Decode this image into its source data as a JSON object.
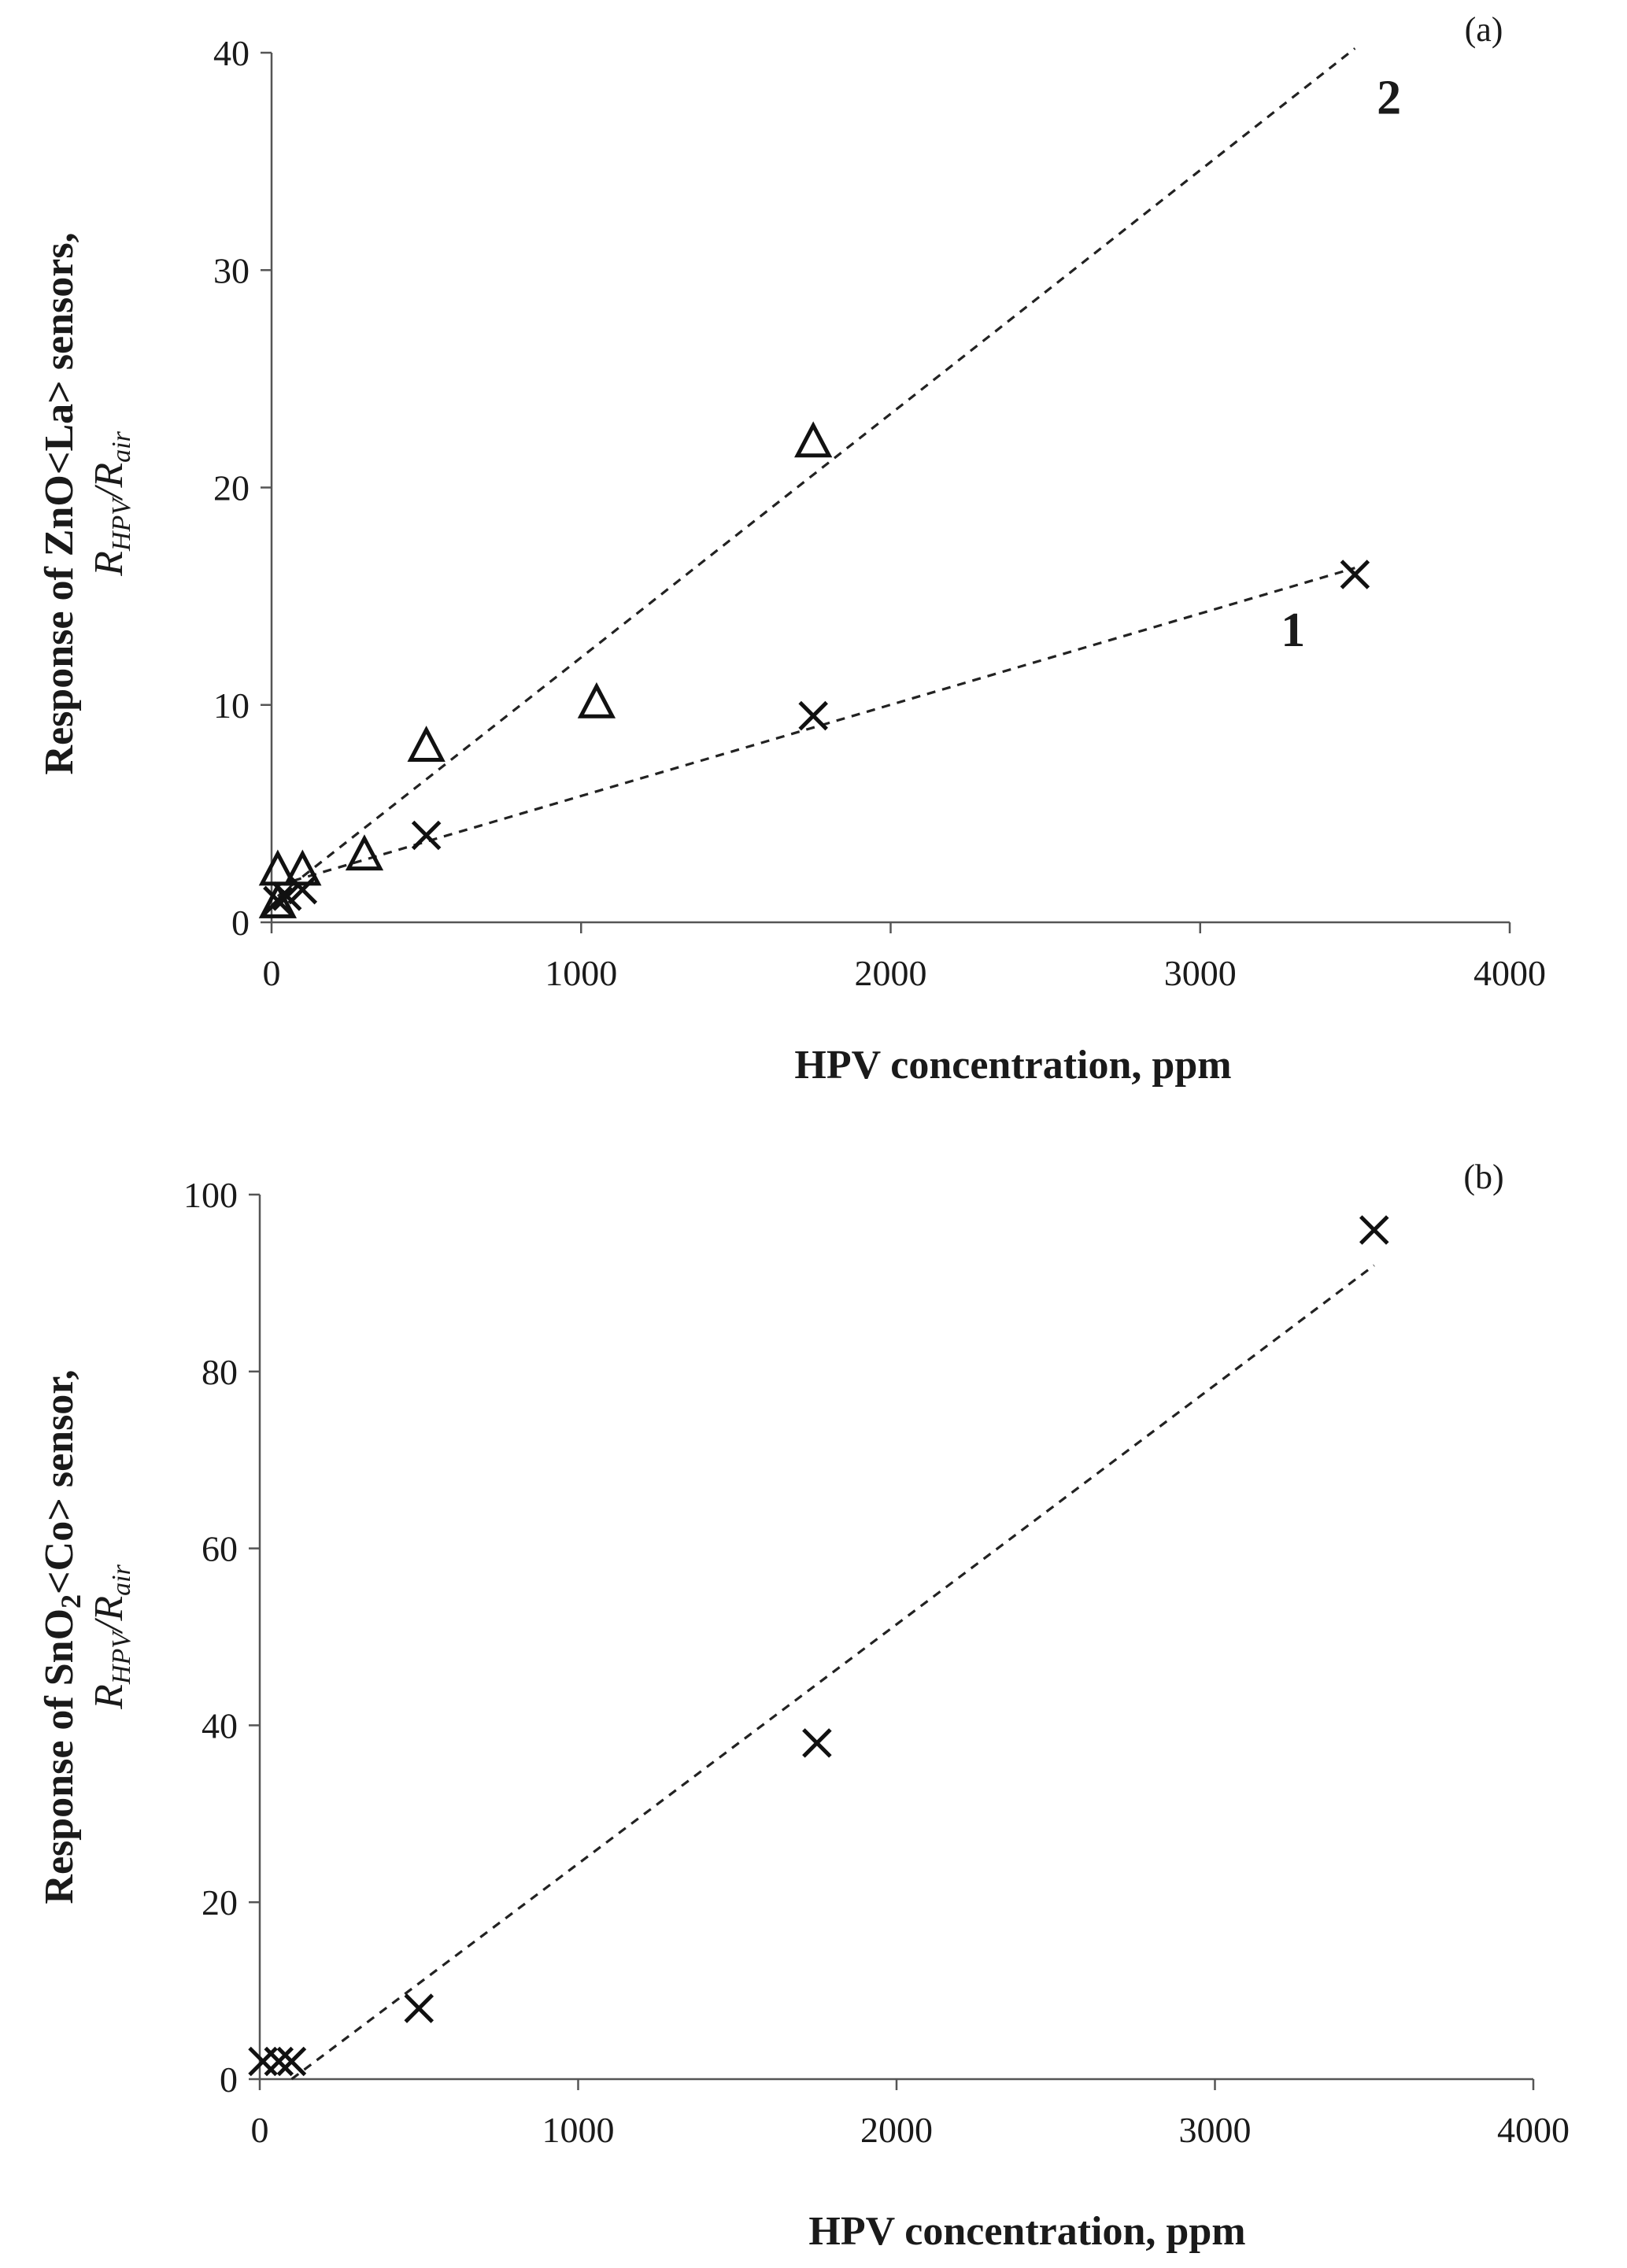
{
  "chart_data": [
    {
      "type": "scatter",
      "panel_label": "(a)",
      "xlabel": "HPV concentration,  ppm",
      "ylabel_main": "Response of ZnO<La> sensors,",
      "ylabel_r": "R",
      "ylabel_sub1": "HPV",
      "ylabel_slash": "/R",
      "ylabel_sub2": "air",
      "xlim": [
        0,
        4000
      ],
      "ylim": [
        0,
        40
      ],
      "xticks": [
        "0",
        "1000",
        "2000",
        "3000",
        "4000"
      ],
      "yticks": [
        "0",
        "10",
        "20",
        "30",
        "40"
      ],
      "series": [
        {
          "name": "1",
          "marker": "x",
          "points": [
            [
              20,
              1.0
            ],
            [
              50,
              1.2
            ],
            [
              100,
              1.5
            ],
            [
              500,
              4.0
            ],
            [
              1750,
              9.5
            ],
            [
              3500,
              16.0
            ]
          ],
          "trend": [
            [
              20,
              1.7
            ],
            [
              3500,
              16.3
            ]
          ],
          "label_at": [
            3300,
            12.7
          ]
        },
        {
          "name": "2",
          "marker": "triangle",
          "points": [
            [
              20,
              0.8
            ],
            [
              20,
              2.3
            ],
            [
              100,
              2.3
            ],
            [
              300,
              3.0
            ],
            [
              500,
              8.0
            ],
            [
              1050,
              10.0
            ],
            [
              1750,
              22.0
            ]
          ],
          "trend": [
            [
              20,
              1.2
            ],
            [
              3500,
              40.2
            ]
          ],
          "label_at": [
            3610,
            37.2
          ]
        }
      ]
    },
    {
      "type": "scatter",
      "panel_label": "(b)",
      "xlabel": "HPV concentration,  ppm",
      "ylabel_main": "Response of SnO",
      "ylabel_main_sub": "2",
      "ylabel_main_rest": "<Co> sensor,",
      "ylabel_r": "R",
      "ylabel_sub1": "HPV",
      "ylabel_slash": "/R",
      "ylabel_sub2": "air",
      "xlim": [
        0,
        4000
      ],
      "ylim": [
        0,
        100
      ],
      "xticks": [
        "0",
        "1000",
        "2000",
        "3000",
        "4000"
      ],
      "yticks": [
        "0",
        "20",
        "40",
        "60",
        "80",
        "100"
      ],
      "series": [
        {
          "name": "SnO2<Co>",
          "marker": "x",
          "points": [
            [
              10,
              2.0
            ],
            [
              60,
              2.0
            ],
            [
              100,
              2.0
            ],
            [
              500,
              8.0
            ],
            [
              1750,
              38.0
            ],
            [
              3500,
              96.0
            ]
          ],
          "trend": [
            [
              100,
              0.0
            ],
            [
              3500,
              92.0
            ]
          ]
        }
      ]
    }
  ]
}
